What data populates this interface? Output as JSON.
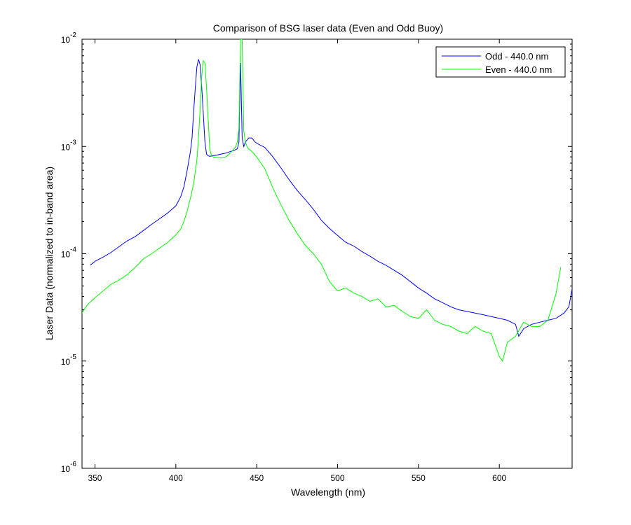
{
  "chart_data": {
    "type": "line",
    "title": "Comparison of BSG laser data (Even and Odd Buoy)",
    "xlabel": "Wavelength (nm)",
    "ylabel": "Laser Data (normalized to in-band area)",
    "xlim": [
      342,
      645
    ],
    "ylim": [
      1e-06,
      0.01
    ],
    "yscale": "log",
    "grid": false,
    "legend_position": "top-right",
    "x_ticks": [
      350,
      400,
      450,
      500,
      550,
      600
    ],
    "y_ticks": [
      {
        "value": 1e-06,
        "base": "10",
        "exp": "-6"
      },
      {
        "value": 1e-05,
        "base": "10",
        "exp": "-5"
      },
      {
        "value": 0.0001,
        "base": "10",
        "exp": "-4"
      },
      {
        "value": 0.001,
        "base": "10",
        "exp": "-3"
      },
      {
        "value": 0.01,
        "base": "10",
        "exp": "-2"
      }
    ],
    "series": [
      {
        "name": "Odd - 440.0 nm",
        "color": "#0000ff",
        "x": [
          347,
          350,
          355,
          360,
          365,
          370,
          375,
          380,
          385,
          390,
          395,
          400,
          403,
          405,
          407,
          409,
          410,
          411,
          412,
          413,
          414,
          415,
          416,
          417,
          418,
          419,
          420,
          421,
          423,
          425,
          428,
          430,
          432,
          434,
          436,
          438,
          439,
          440,
          441,
          442,
          443,
          445,
          447,
          449,
          451,
          455,
          460,
          465,
          470,
          475,
          480,
          485,
          490,
          495,
          500,
          505,
          510,
          515,
          520,
          525,
          530,
          535,
          540,
          545,
          550,
          555,
          560,
          565,
          570,
          575,
          580,
          585,
          590,
          595,
          600,
          605,
          610,
          612,
          615,
          620,
          625,
          630,
          635,
          640,
          643,
          645
        ],
        "y": [
          7.8e-05,
          8.5e-05,
          9.3e-05,
          0.000103,
          0.000117,
          0.000132,
          0.000145,
          0.000165,
          0.000188,
          0.000212,
          0.00024,
          0.00028,
          0.00034,
          0.00042,
          0.0006,
          0.0009,
          0.0012,
          0.0021,
          0.0035,
          0.0055,
          0.0065,
          0.0058,
          0.0036,
          0.002,
          0.0011,
          0.00085,
          0.00082,
          0.00081,
          0.00082,
          0.00083,
          0.00085,
          0.00086,
          0.00088,
          0.0009,
          0.00092,
          0.00095,
          0.0011,
          0.006,
          0.0012,
          0.001,
          0.0011,
          0.0012,
          0.0012,
          0.0011,
          0.00105,
          0.00098,
          0.0008,
          0.00063,
          0.00049,
          0.00039,
          0.00032,
          0.00026,
          0.000205,
          0.000172,
          0.000148,
          0.000128,
          0.000118,
          0.000105,
          9.5e-05,
          8.5e-05,
          7.8e-05,
          7e-05,
          6.3e-05,
          5.5e-05,
          4.8e-05,
          4.3e-05,
          3.8e-05,
          3.5e-05,
          3.2e-05,
          3e-05,
          2.9e-05,
          2.8e-05,
          2.7e-05,
          2.6e-05,
          2.5e-05,
          2.4e-05,
          2.2e-05,
          1.7e-05,
          2e-05,
          2.2e-05,
          2.3e-05,
          2.4e-05,
          2.5e-05,
          2.8e-05,
          3.2e-05,
          4.7e-05
        ]
      },
      {
        "name": "Even - 440.0 nm",
        "color": "#00ff00",
        "x": [
          342,
          345,
          350,
          355,
          360,
          365,
          370,
          375,
          380,
          385,
          390,
          395,
          400,
          403,
          405,
          407,
          409,
          411,
          413,
          414,
          415,
          416,
          417,
          418,
          419,
          420,
          421,
          422,
          423,
          425,
          428,
          430,
          432,
          434,
          436,
          437,
          438,
          439,
          440,
          441,
          442,
          443,
          444,
          445,
          447,
          450,
          455,
          460,
          465,
          470,
          475,
          480,
          485,
          490,
          495,
          500,
          505,
          510,
          515,
          520,
          525,
          530,
          535,
          540,
          545,
          550,
          555,
          560,
          565,
          570,
          575,
          580,
          585,
          590,
          595,
          600,
          602,
          605,
          610,
          615,
          620,
          625,
          630,
          635,
          638
        ],
        "y": [
          2.8e-05,
          3.3e-05,
          3.9e-05,
          4.5e-05,
          5.2e-05,
          5.7e-05,
          6.4e-05,
          7.5e-05,
          9e-05,
          0.0001,
          0.000113,
          0.000128,
          0.00015,
          0.00017,
          0.0002,
          0.00025,
          0.00033,
          0.00045,
          0.00075,
          0.0012,
          0.0022,
          0.0045,
          0.0063,
          0.006,
          0.0035,
          0.0018,
          0.00095,
          0.00082,
          0.0008,
          0.00079,
          0.00078,
          0.00079,
          0.00082,
          0.00088,
          0.00095,
          0.001,
          0.0011,
          0.0015,
          0.01,
          0.01,
          0.0014,
          0.0011,
          0.001,
          0.00095,
          0.0009,
          0.0008,
          0.00062,
          0.00041,
          0.000285,
          0.000205,
          0.000155,
          0.00012,
          0.0001,
          8e-05,
          5.5e-05,
          4.5e-05,
          4.8e-05,
          4.3e-05,
          4e-05,
          3.6e-05,
          3.8e-05,
          3.2e-05,
          3.3e-05,
          2.9e-05,
          2.6e-05,
          2.5e-05,
          3e-05,
          2.4e-05,
          2.2e-05,
          2.1e-05,
          1.9e-05,
          1.8e-05,
          2.1e-05,
          1.9e-05,
          1.8e-05,
          1.1e-05,
          1e-05,
          1.5e-05,
          1.7e-05,
          2.3e-05,
          2.1e-05,
          2.1e-05,
          2.4e-05,
          4.2e-05,
          7.5e-05
        ]
      }
    ]
  }
}
